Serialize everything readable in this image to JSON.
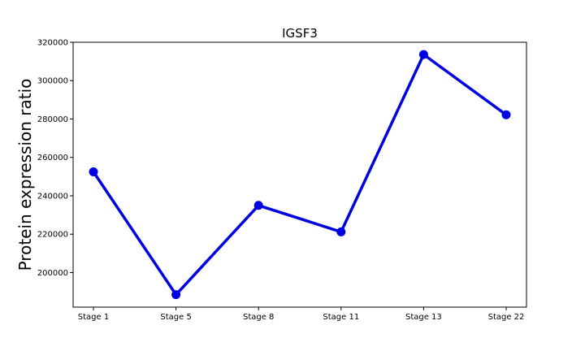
{
  "chart_data": {
    "type": "line",
    "title": "IGSF3",
    "xlabel": "",
    "ylabel": "Protein expression ratio",
    "categories": [
      "Stage 1",
      "Stage 5",
      "Stage 8",
      "Stage 11",
      "Stage 13",
      "Stage 22"
    ],
    "series": [
      {
        "values": [
          252500,
          188500,
          235000,
          221200,
          313600,
          282200
        ],
        "color": "#0000e0"
      }
    ],
    "ylim": [
      182000,
      320000
    ],
    "yticks": [
      200000,
      220000,
      240000,
      260000,
      280000,
      300000,
      320000
    ],
    "ytick_labels": [
      "200000",
      "220000",
      "240000",
      "260000",
      "280000",
      "300000",
      "320000"
    ],
    "grid": false,
    "legend": "none"
  }
}
